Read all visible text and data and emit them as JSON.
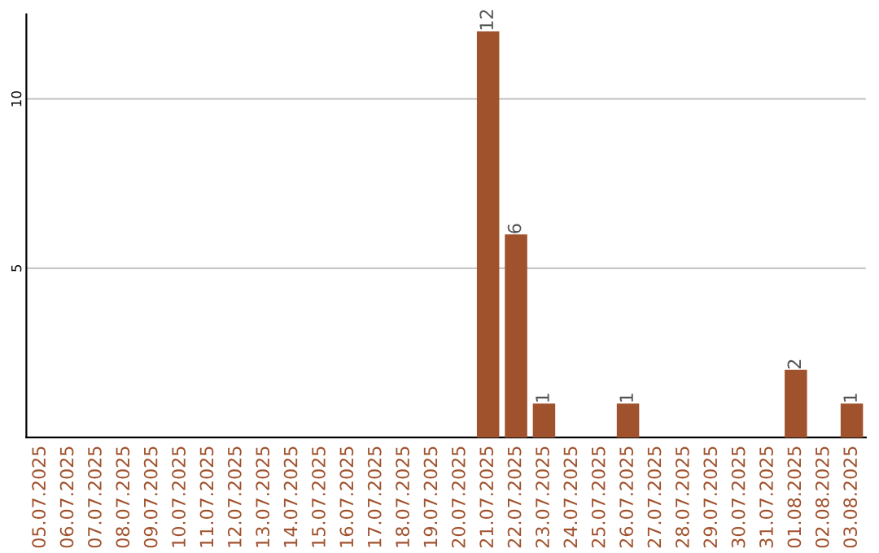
{
  "chart_data": {
    "type": "bar",
    "categories": [
      "05.07.2025",
      "06.07.2025",
      "07.07.2025",
      "08.07.2025",
      "09.07.2025",
      "10.07.2025",
      "11.07.2025",
      "12.07.2025",
      "13.07.2025",
      "14.07.2025",
      "15.07.2025",
      "16.07.2025",
      "17.07.2025",
      "18.07.2025",
      "19.07.2025",
      "20.07.2025",
      "21.07.2025",
      "22.07.2025",
      "23.07.2025",
      "24.07.2025",
      "25.07.2025",
      "26.07.2025",
      "27.07.2025",
      "28.07.2025",
      "29.07.2025",
      "30.07.2025",
      "31.07.2025",
      "01.08.2025",
      "02.08.2025",
      "03.08.2025"
    ],
    "values": [
      0,
      0,
      0,
      0,
      0,
      0,
      0,
      0,
      0,
      0,
      0,
      0,
      0,
      0,
      0,
      0,
      12,
      6,
      1,
      0,
      0,
      1,
      0,
      0,
      0,
      0,
      0,
      2,
      0,
      1
    ],
    "value_labels": [
      null,
      null,
      null,
      null,
      null,
      null,
      null,
      null,
      null,
      null,
      null,
      null,
      null,
      null,
      null,
      null,
      "12",
      "6",
      "1",
      null,
      null,
      "1",
      null,
      null,
      null,
      null,
      null,
      "2",
      null,
      "1"
    ],
    "color": "#a0522d",
    "ylim": [
      0,
      12.5
    ],
    "yticks": [
      5,
      10
    ],
    "grid": "y",
    "legend": false
  }
}
